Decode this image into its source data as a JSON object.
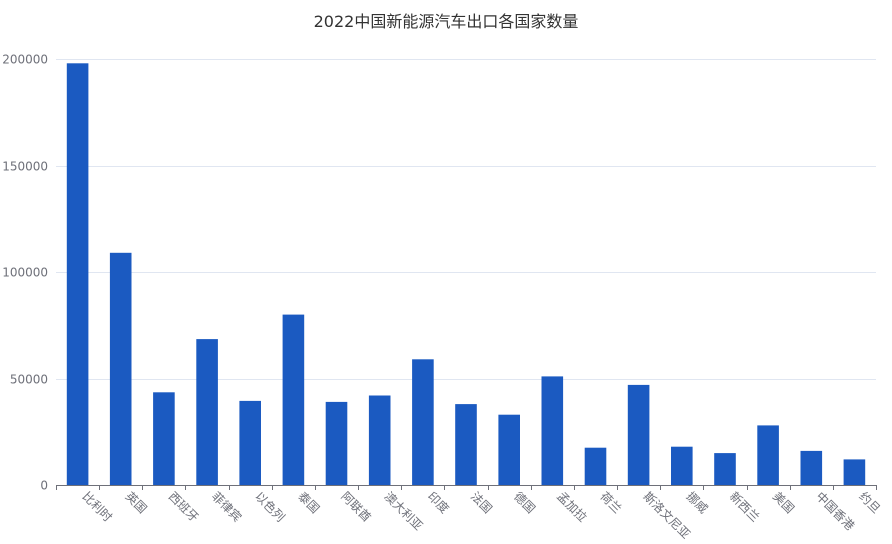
{
  "chart_data": {
    "type": "bar",
    "title": "2022中国新能源汽车出口各国家数量",
    "xlabel": "",
    "ylabel": "",
    "ylim": [
      0,
      200000
    ],
    "yticks": [
      0,
      50000,
      100000,
      150000,
      200000
    ],
    "ytick_labels": [
      "0",
      "50000",
      "100000",
      "150000",
      "200000"
    ],
    "grid": true,
    "color": "#1b5ac1",
    "categories": [
      "比利时",
      "英国",
      "西班牙",
      "菲律宾",
      "以色列",
      "泰国",
      "阿联酋",
      "澳大利亚",
      "印度",
      "法国",
      "德国",
      "孟加拉",
      "荷兰",
      "斯洛文尼亚",
      "挪威",
      "新西兰",
      "美国",
      "中国香港",
      "约旦"
    ],
    "values": [
      198000,
      109000,
      43500,
      68500,
      39500,
      80000,
      39000,
      42000,
      59000,
      38000,
      33000,
      51000,
      17500,
      47000,
      18000,
      15000,
      28000,
      16000,
      12000
    ]
  }
}
